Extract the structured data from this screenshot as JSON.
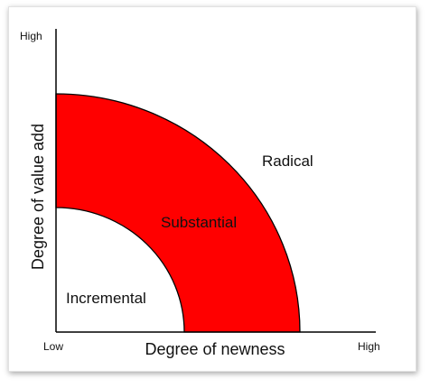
{
  "diagram": {
    "y_axis": {
      "label": "Degree of value add",
      "high_label": "High"
    },
    "x_axis": {
      "label": "Degree of newness",
      "low_label": "Low",
      "high_label": "High"
    },
    "regions": [
      {
        "label": "Incremental",
        "fill": "#ffffff"
      },
      {
        "label": "Substantial",
        "fill": "#ff0000"
      },
      {
        "label": "Radical",
        "fill": "#ffffff"
      }
    ]
  }
}
